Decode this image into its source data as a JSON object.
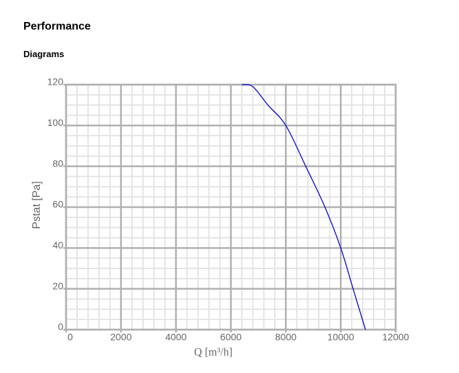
{
  "header": {
    "title": "Performance",
    "subtitle": "Diagrams"
  },
  "chart_data": {
    "type": "line",
    "xlabel": "Q [m³/h]",
    "ylabel": "Pstat [Pa]",
    "x": [
      6400,
      6800,
      7350,
      8000,
      8725,
      9425,
      10000,
      10450,
      10900
    ],
    "series": [
      {
        "name": "Pstat",
        "color": "#0000cc",
        "values": [
          120,
          119,
          110,
          100,
          80,
          60,
          40,
          20,
          0
        ]
      }
    ],
    "xlim": [
      0,
      12000
    ],
    "xticks": [
      0,
      2000,
      4000,
      6000,
      8000,
      10000,
      12000
    ],
    "ylim": [
      0,
      120
    ],
    "yticks": [
      0,
      20,
      40,
      60,
      80,
      100,
      120
    ],
    "grid": true
  }
}
